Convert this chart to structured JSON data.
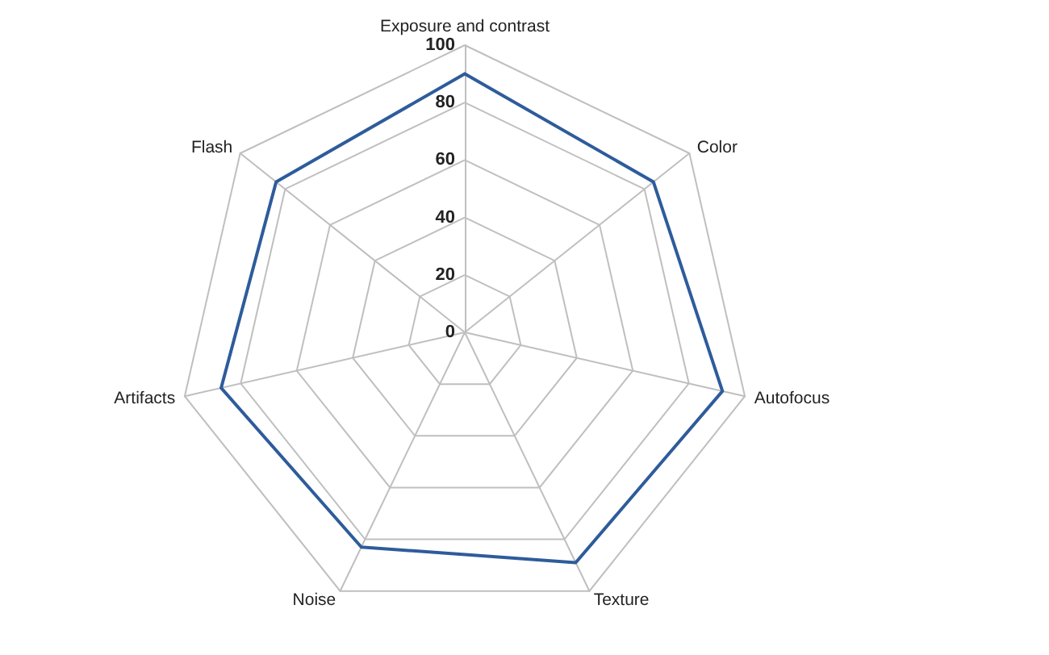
{
  "chart_data": {
    "type": "radar",
    "categories": [
      "Exposure and contrast",
      "Color",
      "Autofocus",
      "Texture",
      "Noise",
      "Artifacts",
      "Flash"
    ],
    "series": [
      {
        "color": "#2e5c9b",
        "values": [
          90,
          84,
          92,
          89,
          83,
          87,
          84
        ]
      }
    ],
    "ylim": [
      0,
      100
    ],
    "yticks": [
      0,
      20,
      40,
      60,
      80,
      100
    ],
    "grid": true,
    "marker": "none",
    "line_style": "solid"
  }
}
